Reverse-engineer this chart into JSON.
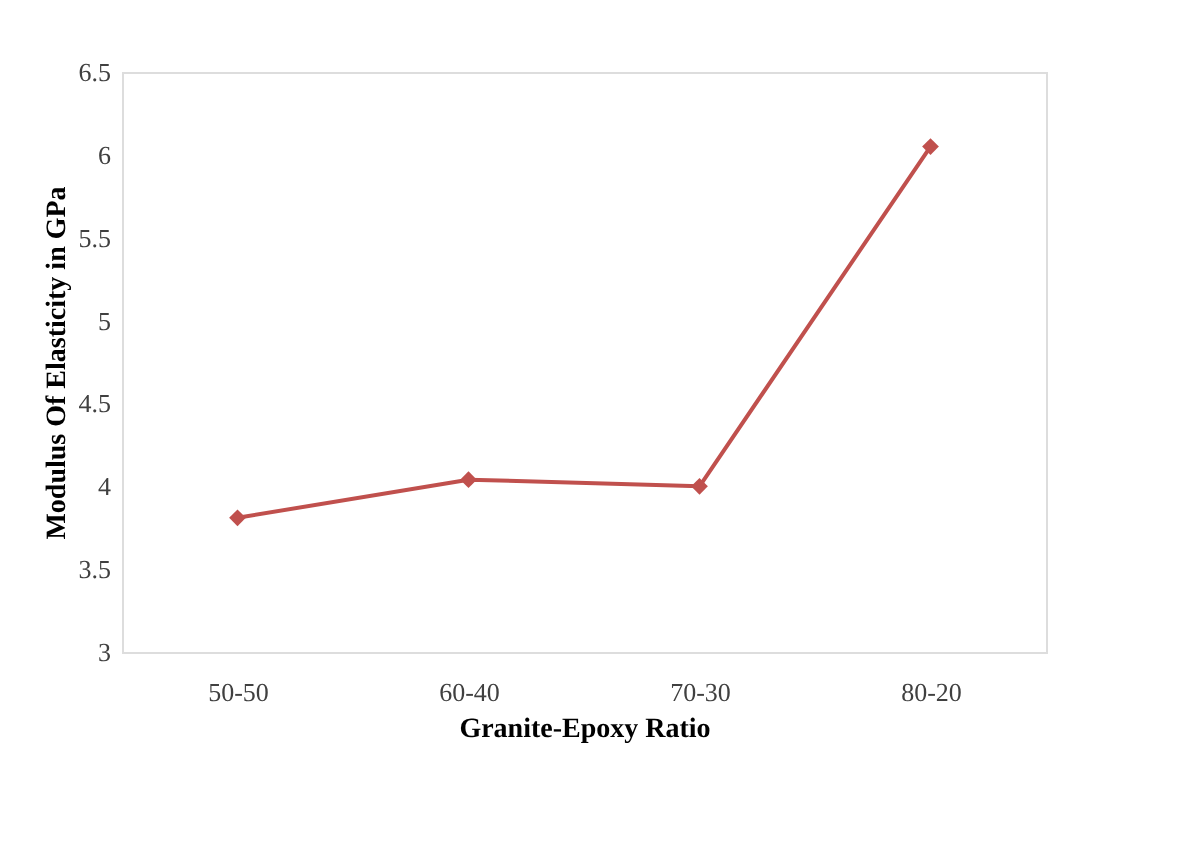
{
  "chart_data": {
    "type": "line",
    "xlabel": "Granite-Epoxy Ratio",
    "ylabel": "Modulus Of Elasticity in GPa",
    "categories": [
      "50-50",
      "60-40",
      "70-30",
      "80-20"
    ],
    "series": [
      {
        "color": "#c0504d",
        "values": [
          3.81,
          4.04,
          4.0,
          6.05
        ]
      }
    ],
    "ylim": [
      3,
      6.5
    ],
    "yticks": [
      3,
      3.5,
      4,
      4.5,
      5,
      5.5,
      6,
      6.5
    ],
    "grid": false,
    "marker": "diamond",
    "line_style": "solid"
  }
}
